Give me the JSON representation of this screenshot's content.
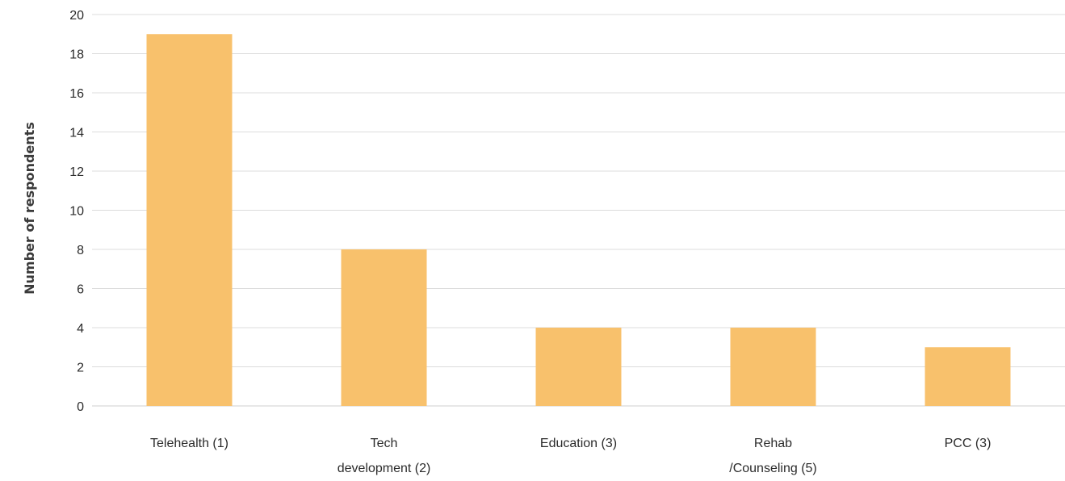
{
  "chart_data": {
    "type": "bar",
    "categories": [
      [
        "Telehealth (1)"
      ],
      [
        "Tech",
        "development (2)"
      ],
      [
        "Education (3)"
      ],
      [
        "Rehab",
        "/Counseling (5)"
      ],
      [
        "PCC (3)"
      ]
    ],
    "values": [
      19,
      8,
      4,
      4,
      3
    ],
    "ylabel": "Number of respondents",
    "xlabel": "",
    "ylim": [
      0,
      20
    ],
    "yticks": [
      0,
      2,
      4,
      6,
      8,
      10,
      12,
      14,
      16,
      18,
      20
    ],
    "grid": true,
    "bar_color": "#f8c16c",
    "grid_color": "#dcdcdc",
    "text_color": "#2b2b2b"
  }
}
